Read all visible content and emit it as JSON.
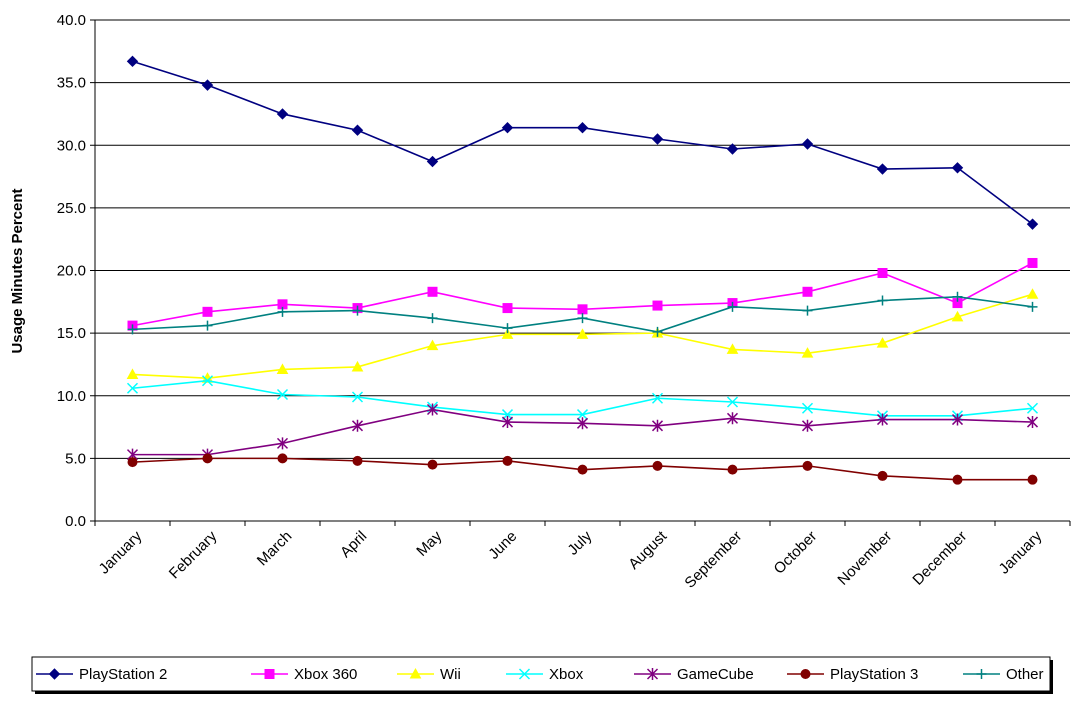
{
  "chart_data": {
    "type": "line",
    "title": "",
    "xlabel": "",
    "ylabel": "Usage Minutes Percent",
    "ylim": [
      0,
      40
    ],
    "yticks": [
      "0.0",
      "5.0",
      "10.0",
      "15.0",
      "20.0",
      "25.0",
      "30.0",
      "35.0",
      "40.0"
    ],
    "grid": "horizontal",
    "legend_position": "bottom",
    "categories": [
      "January",
      "February",
      "March",
      "April",
      "May",
      "June",
      "July",
      "August",
      "September",
      "October",
      "November",
      "December",
      "January"
    ],
    "series": [
      {
        "name": "PlayStation 2",
        "color": "#000080",
        "marker": "diamond",
        "values": [
          36.7,
          34.8,
          32.5,
          31.2,
          28.7,
          31.4,
          31.4,
          30.5,
          29.7,
          30.1,
          28.1,
          28.2,
          23.7
        ]
      },
      {
        "name": "Xbox 360",
        "color": "#FF00FF",
        "marker": "square",
        "values": [
          15.6,
          16.7,
          17.3,
          17.0,
          18.3,
          17.0,
          16.9,
          17.2,
          17.4,
          18.3,
          19.8,
          17.4,
          20.6
        ]
      },
      {
        "name": "Wii",
        "color": "#FFFF00",
        "marker": "triangle",
        "values": [
          11.7,
          11.4,
          12.1,
          12.3,
          14.0,
          14.9,
          14.9,
          15.0,
          13.7,
          13.4,
          14.2,
          16.3,
          18.1
        ]
      },
      {
        "name": "Xbox",
        "color": "#00FFFF",
        "marker": "x",
        "values": [
          10.6,
          11.2,
          10.1,
          9.9,
          9.1,
          8.5,
          8.5,
          9.8,
          9.5,
          9.0,
          8.4,
          8.4,
          9.0
        ]
      },
      {
        "name": "GameCube",
        "color": "#800080",
        "marker": "star",
        "values": [
          5.3,
          5.3,
          6.2,
          7.6,
          8.9,
          7.9,
          7.8,
          7.6,
          8.2,
          7.6,
          8.1,
          8.1,
          7.9
        ]
      },
      {
        "name": "PlayStation 3",
        "color": "#800000",
        "marker": "circle",
        "values": [
          4.7,
          5.0,
          5.0,
          4.8,
          4.5,
          4.8,
          4.1,
          4.4,
          4.1,
          4.4,
          3.6,
          3.3,
          3.3
        ]
      },
      {
        "name": "Other",
        "color": "#008080",
        "marker": "plus",
        "values": [
          15.3,
          15.6,
          16.7,
          16.8,
          16.2,
          15.4,
          16.2,
          15.1,
          17.1,
          16.8,
          17.6,
          17.9,
          17.1
        ]
      }
    ]
  }
}
